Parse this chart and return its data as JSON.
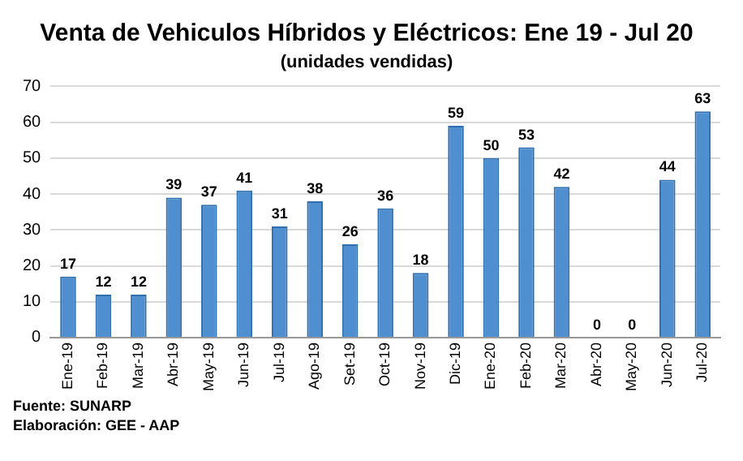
{
  "chart_data": {
    "type": "bar",
    "title": "Venta de Vehiculos Híbridos y Eléctricos: Ene 19 - Jul 20",
    "subtitle": "(unidades vendidas)",
    "categories": [
      "Ene-19",
      "Feb-19",
      "Mar-19",
      "Abr-19",
      "May-19",
      "Jun-19",
      "Jul-19",
      "Ago-19",
      "Set-19",
      "Oct-19",
      "Nov-19",
      "Dic-19",
      "Ene-20",
      "Feb-20",
      "Mar-20",
      "Abr-20",
      "May-20",
      "Jun-20",
      "Jul-20"
    ],
    "values": [
      17,
      12,
      12,
      39,
      37,
      41,
      31,
      38,
      26,
      36,
      18,
      59,
      50,
      53,
      42,
      0,
      0,
      44,
      63
    ],
    "color": "#4f8fd0",
    "ylim": [
      0,
      70
    ],
    "yticks": [
      0,
      10,
      20,
      30,
      40,
      50,
      60,
      70
    ],
    "grid": "y",
    "data_labels": true,
    "legend": false,
    "annotations": [
      "Fuente: SUNARP",
      "Elaboración: GEE - AAP"
    ]
  }
}
